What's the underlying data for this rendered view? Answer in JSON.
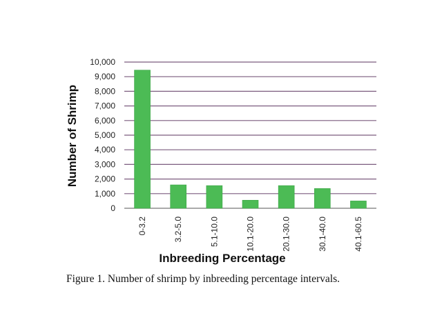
{
  "chart_data": {
    "type": "bar",
    "categories": [
      "0-3.2",
      "3.2-5.0",
      "5.1-10.0",
      "10.1-20.0",
      "20.1-30.0",
      "30.1-40.0",
      "40.1-60.5"
    ],
    "values": [
      9450,
      1600,
      1550,
      550,
      1550,
      1350,
      500
    ],
    "xlabel": "Inbreeding Percentage",
    "ylabel": "Number of Shrimp",
    "ylim": [
      0,
      10000
    ],
    "yticks": [
      "0",
      "1,000",
      "2,000",
      "3,000",
      "4,000",
      "5,000",
      "6,000",
      "7,000",
      "8,000",
      "9,000",
      "10,000"
    ],
    "grid": true,
    "bar_color": "#4cbb55",
    "grid_color": "#7a5a7e"
  },
  "caption": "Figure 1. Number of shrimp by inbreeding percentage intervals."
}
